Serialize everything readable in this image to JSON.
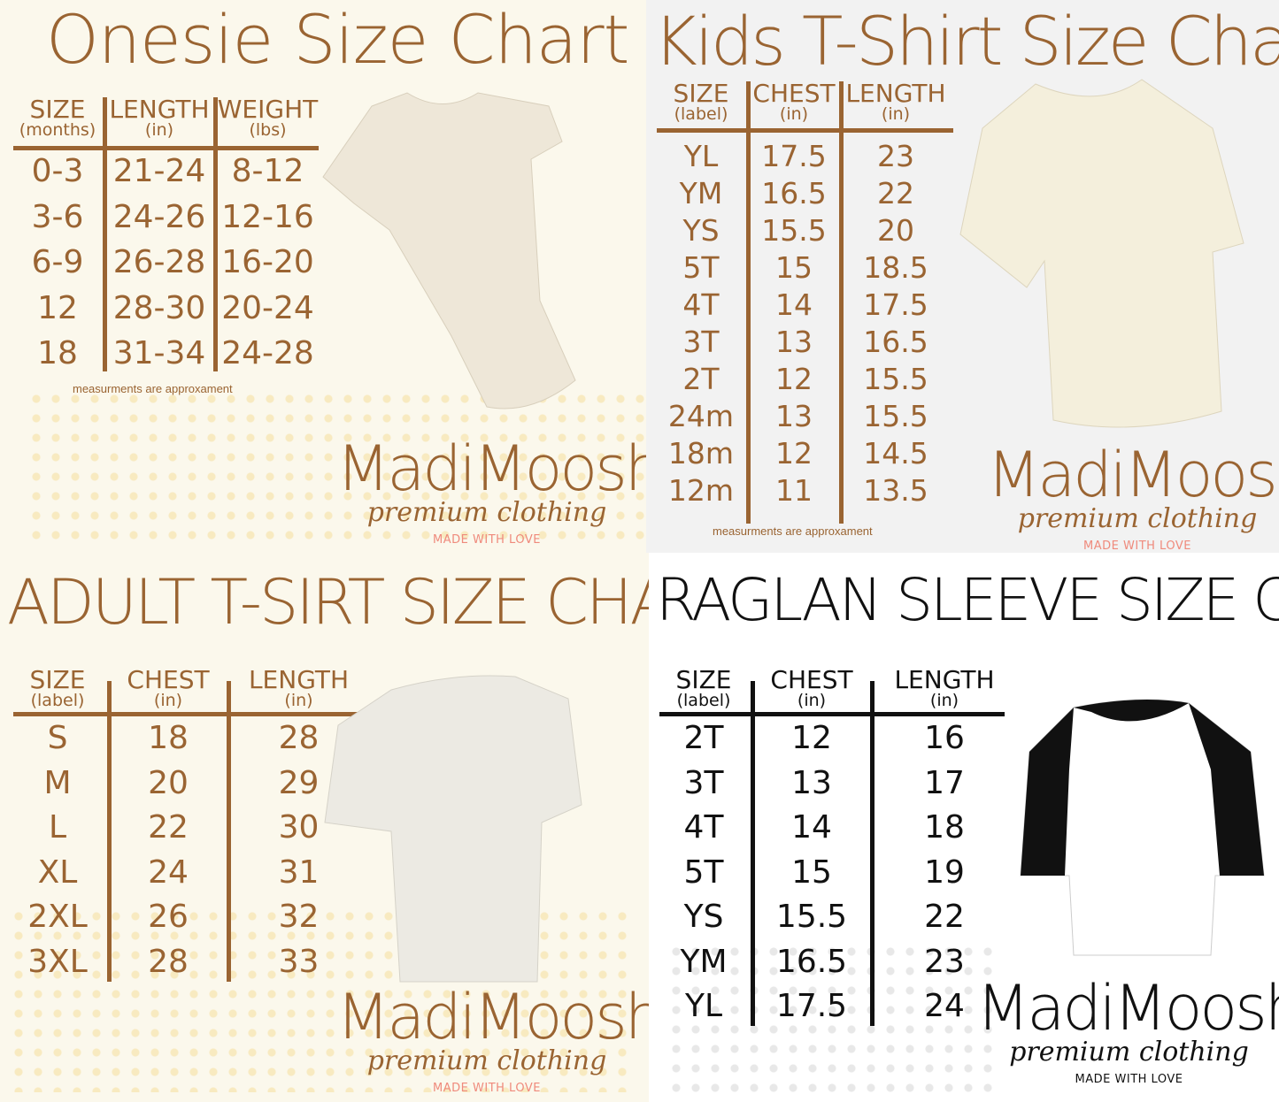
{
  "colors": {
    "brown": "#9a6432",
    "pink": "#ef8a7c",
    "black": "#111111"
  },
  "brand": {
    "name": "MadiMoosh",
    "tagline": "premium clothing",
    "motto": "MADE WITH LOVE"
  },
  "onesie": {
    "title": "Onesie Size Chart",
    "headers": [
      {
        "main": "SIZE",
        "sub": "(months)"
      },
      {
        "main": "LENGTH",
        "sub": "(in)"
      },
      {
        "main": "WEIGHT",
        "sub": "(lbs)"
      }
    ],
    "rows": [
      [
        "0-3",
        "21-24",
        "8-12"
      ],
      [
        "3-6",
        "24-26",
        "12-16"
      ],
      [
        "6-9",
        "26-28",
        "16-20"
      ],
      [
        "12",
        "28-30",
        "20-24"
      ],
      [
        "18",
        "31-34",
        "24-28"
      ]
    ],
    "note": "measurments are approxament"
  },
  "kids": {
    "title": "Kids T-Shirt Size Chart",
    "headers": [
      {
        "main": "SIZE",
        "sub": "(label)"
      },
      {
        "main": "CHEST",
        "sub": "(in)"
      },
      {
        "main": "LENGTH",
        "sub": "(in)"
      }
    ],
    "rows": [
      [
        "YL",
        "17.5",
        "23"
      ],
      [
        "YM",
        "16.5",
        "22"
      ],
      [
        "YS",
        "15.5",
        "20"
      ],
      [
        "5T",
        "15",
        "18.5"
      ],
      [
        "4T",
        "14",
        "17.5"
      ],
      [
        "3T",
        "13",
        "16.5"
      ],
      [
        "2T",
        "12",
        "15.5"
      ],
      [
        "24m",
        "13",
        "15.5"
      ],
      [
        "18m",
        "12",
        "14.5"
      ],
      [
        "12m",
        "11",
        "13.5"
      ]
    ],
    "note": "measurments are approxament"
  },
  "adult": {
    "title": "ADULT T-SIRT SIZE CHART",
    "headers": [
      {
        "main": "SIZE",
        "sub": "(label)"
      },
      {
        "main": "CHEST",
        "sub": "(in)"
      },
      {
        "main": "LENGTH",
        "sub": "(in)"
      }
    ],
    "rows": [
      [
        "S",
        "18",
        "28"
      ],
      [
        "M",
        "20",
        "29"
      ],
      [
        "L",
        "22",
        "30"
      ],
      [
        "XL",
        "24",
        "31"
      ],
      [
        "2XL",
        "26",
        "32"
      ],
      [
        "3XL",
        "28",
        "33"
      ]
    ]
  },
  "raglan": {
    "title": "RAGLAN SLEEVE SIZE CHART",
    "headers": [
      {
        "main": "SIZE",
        "sub": "(label)"
      },
      {
        "main": "CHEST",
        "sub": "(in)"
      },
      {
        "main": "LENGTH",
        "sub": "(in)"
      }
    ],
    "rows": [
      [
        "2T",
        "12",
        "16"
      ],
      [
        "3T",
        "13",
        "17"
      ],
      [
        "4T",
        "14",
        "18"
      ],
      [
        "5T",
        "15",
        "19"
      ],
      [
        "YS",
        "15.5",
        "22"
      ],
      [
        "YM",
        "16.5",
        "23"
      ],
      [
        "YL",
        "17.5",
        "24"
      ]
    ]
  }
}
